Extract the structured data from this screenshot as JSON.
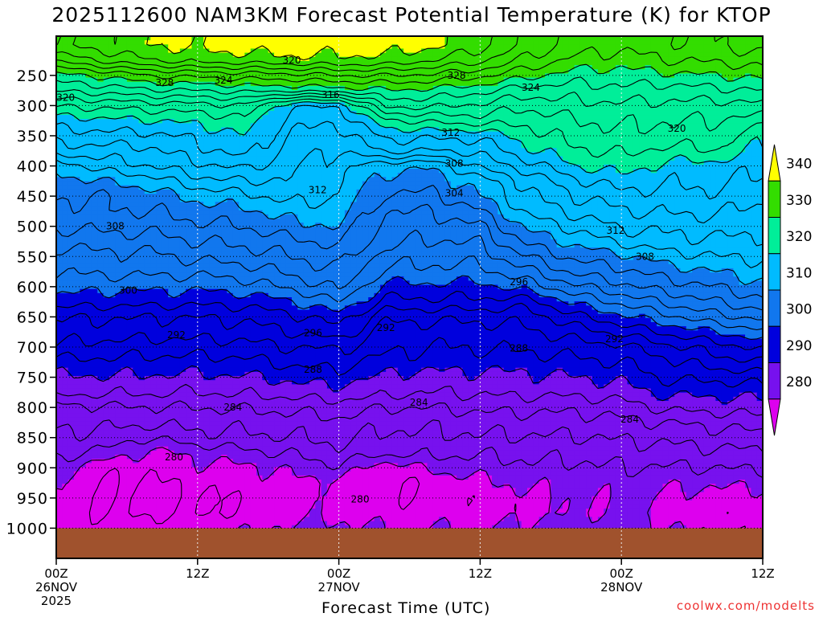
{
  "chart_data": {
    "type": "heatmap",
    "title": "2025112600 NAM3KM Forecast Potential Temperature (K) for KTOP",
    "xlabel": "Forecast Time (UTC)",
    "ylabel": "",
    "credit": "coolwx.com/modelts",
    "x_ticks": [
      {
        "hour": 0,
        "label": "00Z",
        "sub": "26NOV",
        "sub2": "2025"
      },
      {
        "hour": 12,
        "label": "12Z",
        "sub": "",
        "sub2": ""
      },
      {
        "hour": 24,
        "label": "00Z",
        "sub": "27NOV",
        "sub2": ""
      },
      {
        "hour": 36,
        "label": "12Z",
        "sub": "",
        "sub2": ""
      },
      {
        "hour": 48,
        "label": "00Z",
        "sub": "28NOV",
        "sub2": ""
      },
      {
        "hour": 60,
        "label": "12Z",
        "sub": "",
        "sub2": ""
      }
    ],
    "xlim": [
      0,
      60
    ],
    "y_ticks": [
      250,
      300,
      350,
      400,
      450,
      500,
      550,
      600,
      650,
      700,
      750,
      800,
      850,
      900,
      950,
      1000
    ],
    "ylim": [
      1050,
      185
    ],
    "surface_pressure": 1000,
    "colorbar": {
      "bins": [
        {
          "lo": 340,
          "hi": null,
          "color": "#ffff00"
        },
        {
          "lo": 330,
          "hi": 340,
          "color": "#33dd00"
        },
        {
          "lo": 320,
          "hi": 330,
          "color": "#00ee99"
        },
        {
          "lo": 310,
          "hi": 320,
          "color": "#00bbff"
        },
        {
          "lo": 300,
          "hi": 310,
          "color": "#1177ee"
        },
        {
          "lo": 290,
          "hi": 300,
          "color": "#0000dd"
        },
        {
          "lo": 280,
          "hi": 290,
          "color": "#7711ee"
        },
        {
          "lo": null,
          "hi": 280,
          "color": "#dd00ee"
        }
      ],
      "tick_labels": [
        "340",
        "330",
        "320",
        "310",
        "300",
        "290",
        "280"
      ]
    },
    "ground_color": "#a0522d",
    "contour_interval": 2,
    "contour_labels": [
      {
        "value": 320,
        "hour": 0.8,
        "p": 287
      },
      {
        "value": 328,
        "hour": 9.2,
        "p": 262
      },
      {
        "value": 324,
        "hour": 14.2,
        "p": 258
      },
      {
        "value": 320,
        "hour": 20.0,
        "p": 225
      },
      {
        "value": 316,
        "hour": 23.3,
        "p": 282
      },
      {
        "value": 328,
        "hour": 34.0,
        "p": 250
      },
      {
        "value": 324,
        "hour": 40.3,
        "p": 270
      },
      {
        "value": 312,
        "hour": 33.5,
        "p": 345
      },
      {
        "value": 320,
        "hour": 52.7,
        "p": 338
      },
      {
        "value": 308,
        "hour": 33.8,
        "p": 396
      },
      {
        "value": 312,
        "hour": 22.2,
        "p": 440
      },
      {
        "value": 304,
        "hour": 33.8,
        "p": 445
      },
      {
        "value": 308,
        "hour": 5.0,
        "p": 500
      },
      {
        "value": 312,
        "hour": 47.5,
        "p": 507
      },
      {
        "value": 308,
        "hour": 50.0,
        "p": 550
      },
      {
        "value": 296,
        "hour": 39.3,
        "p": 592
      },
      {
        "value": 300,
        "hour": 6.1,
        "p": 606
      },
      {
        "value": 296,
        "hour": 21.8,
        "p": 677
      },
      {
        "value": 292,
        "hour": 10.2,
        "p": 680
      },
      {
        "value": 292,
        "hour": 28.0,
        "p": 668
      },
      {
        "value": 292,
        "hour": 47.4,
        "p": 687
      },
      {
        "value": 288,
        "hour": 39.3,
        "p": 702
      },
      {
        "value": 288,
        "hour": 21.8,
        "p": 737
      },
      {
        "value": 284,
        "hour": 30.8,
        "p": 792
      },
      {
        "value": 284,
        "hour": 15.0,
        "p": 800
      },
      {
        "value": 284,
        "hour": 48.7,
        "p": 820
      },
      {
        "value": 280,
        "hour": 10.0,
        "p": 882
      },
      {
        "value": 280,
        "hour": 25.8,
        "p": 952
      }
    ],
    "pressure_levels": [
      200,
      225,
      250,
      275,
      300,
      325,
      350,
      375,
      400,
      425,
      450,
      475,
      500,
      525,
      550,
      575,
      600,
      625,
      650,
      675,
      700,
      725,
      750,
      775,
      800,
      825,
      850,
      875,
      900,
      925,
      950,
      975,
      1000
    ],
    "theta_profiles": [
      {
        "hour": 0,
        "theta": [
          338,
          334.4,
          329.3,
          326.2,
          322.2,
          319,
          317,
          315.3,
          310.5,
          309.2,
          308.2,
          307.1,
          306.4,
          304.5,
          303,
          302,
          300.9,
          299,
          296.1,
          295,
          293.7,
          291.4,
          289.7,
          288.7,
          285,
          284.4,
          283.4,
          282.6,
          281.2,
          279.7,
          279,
          279,
          279
        ]
      },
      {
        "hour": 4,
        "theta": [
          339,
          336.4,
          330.3,
          326.8,
          322.5,
          319.5,
          317.3,
          315,
          313,
          310,
          308,
          307.8,
          306.5,
          305,
          303.5,
          302.5,
          300.5,
          298.7,
          296.2,
          295,
          293.2,
          291.5,
          289.8,
          288.3,
          285.8,
          284.5,
          283.5,
          281.5,
          278.5,
          278,
          277.8,
          278,
          279
        ]
      },
      {
        "hour": 8,
        "theta": [
          340,
          338,
          332,
          327.7,
          323,
          319.8,
          317.5,
          315.5,
          314,
          311,
          309,
          308,
          306.7,
          305.1,
          303.5,
          302.5,
          300.5,
          298.7,
          296,
          294.8,
          293,
          291.3,
          289.7,
          288.3,
          285.8,
          284.5,
          282,
          279.5,
          278.5,
          277.8,
          277.5,
          277.8,
          279
        ]
      },
      {
        "hour": 12,
        "theta": [
          340.5,
          338.8,
          332.5,
          328,
          323.3,
          320.5,
          318.5,
          317.3,
          315.5,
          313.3,
          310.5,
          309,
          307.5,
          306,
          304.5,
          302.5,
          300.5,
          298.5,
          296,
          294.8,
          293,
          291.2,
          289.6,
          288,
          286,
          284.5,
          283.5,
          280.5,
          279.5,
          278.5,
          277.8,
          278,
          279.5
        ]
      },
      {
        "hour": 16,
        "theta": [
          341,
          339,
          333,
          328.5,
          323.8,
          321.5,
          320,
          319,
          316.5,
          314,
          311.5,
          309.5,
          308,
          306.5,
          305,
          303,
          301,
          298.7,
          296.5,
          295,
          293.2,
          291.5,
          289.8,
          288.3,
          286.2,
          284.7,
          283.5,
          281.5,
          279.5,
          278.8,
          278.2,
          278.3,
          279.5
        ]
      },
      {
        "hour": 20,
        "theta": [
          341,
          339.5,
          333.3,
          328.5,
          318,
          316.8,
          315.8,
          315,
          314.3,
          313.8,
          312.8,
          311,
          309.5,
          307.5,
          306,
          304.5,
          302.5,
          299.8,
          297.5,
          296,
          294,
          292.5,
          290.5,
          288.8,
          286.5,
          285,
          284,
          282.2,
          280.5,
          279.5,
          279.2,
          279.5,
          280.5
        ]
      },
      {
        "hour": 24,
        "theta": [
          341,
          339.5,
          334,
          329,
          318.3,
          316.2,
          315,
          313.8,
          312.8,
          312.5,
          312,
          311.3,
          310,
          308.5,
          307,
          306,
          304.5,
          302,
          299,
          297.3,
          294.2,
          292.8,
          291,
          289.2,
          287,
          285.5,
          284.5,
          283.4,
          281.7,
          279.5,
          279.2,
          279.5,
          280.5
        ]
      },
      {
        "hour": 28,
        "theta": [
          341,
          339.5,
          334,
          329.8,
          326.5,
          321.5,
          318.5,
          316.5,
          310.5,
          309.2,
          307.8,
          306,
          305.2,
          304.5,
          303,
          301.5,
          299.5,
          297.5,
          294.5,
          293,
          292.5,
          291.2,
          289.5,
          288.5,
          286,
          284.5,
          283.5,
          282.5,
          278.5,
          278,
          278.3,
          278.8,
          280
        ]
      },
      {
        "hour": 32,
        "theta": [
          340.5,
          338,
          333.5,
          329.5,
          326.5,
          322.5,
          318.5,
          316,
          310.3,
          309,
          307.5,
          306,
          305,
          303.8,
          302.6,
          301.5,
          299.5,
          297.5,
          294.5,
          293,
          292,
          291,
          289.2,
          288,
          286,
          284.5,
          283.6,
          282.5,
          280.5,
          278.5,
          278.3,
          278.8,
          280
        ]
      },
      {
        "hour": 36,
        "theta": [
          338.5,
          336.5,
          332.5,
          328.5,
          325.5,
          323,
          318.5,
          316.5,
          314.5,
          311,
          310,
          307.8,
          305.7,
          304.2,
          302.8,
          301.3,
          299.3,
          297.5,
          294.5,
          293,
          292.2,
          290.8,
          289.5,
          288.3,
          286.5,
          284.8,
          283.8,
          282.2,
          281,
          279.5,
          278.8,
          279,
          280
        ]
      },
      {
        "hour": 40,
        "theta": [
          335.5,
          333.5,
          330.5,
          327,
          324.5,
          322.5,
          321,
          319.5,
          317,
          314.5,
          313.5,
          312.5,
          310.5,
          308.5,
          306,
          303.5,
          301,
          297,
          294.8,
          293.5,
          292.4,
          291,
          289.5,
          288.5,
          286.5,
          285,
          283.8,
          282.6,
          281.5,
          280.5,
          279.5,
          279.5,
          280.5
        ]
      },
      {
        "hour": 44,
        "theta": [
          333,
          331.5,
          329,
          327,
          325.5,
          323.8,
          323,
          321.5,
          320,
          317.5,
          316,
          314.5,
          312.5,
          310.5,
          308.5,
          306.5,
          303.5,
          300.5,
          297.5,
          295,
          293,
          291.5,
          290,
          288.5,
          286.5,
          285,
          283.8,
          282.5,
          281.5,
          280.5,
          280,
          280,
          281
        ]
      },
      {
        "hour": 48,
        "theta": [
          332.5,
          331,
          329,
          327.5,
          325.5,
          324.5,
          323.5,
          322.5,
          321,
          319,
          317.2,
          315.8,
          314.3,
          312.5,
          309.5,
          307.5,
          305.5,
          302.5,
          299.5,
          296.5,
          293.5,
          292,
          290.5,
          289,
          287,
          285.5,
          284.2,
          283,
          282,
          281,
          280.5,
          280.5,
          281.5
        ]
      },
      {
        "hour": 52,
        "theta": [
          333.5,
          332,
          329.5,
          327,
          325.5,
          324,
          323.3,
          321.3,
          319.3,
          318.3,
          317.3,
          316.3,
          314.5,
          313.5,
          311.2,
          309,
          307,
          304.5,
          301.5,
          298.5,
          295.5,
          293.5,
          292.5,
          290.5,
          288.5,
          286,
          284.5,
          283.2,
          281.8,
          280.5,
          279.5,
          279,
          280
        ]
      },
      {
        "hour": 56,
        "theta": [
          334,
          332.3,
          330,
          327.5,
          325.2,
          324,
          323,
          322,
          319,
          318.5,
          317.5,
          316.3,
          315,
          313.6,
          312,
          310,
          308,
          306,
          303.5,
          300,
          297,
          295,
          292.5,
          290.5,
          288.7,
          286.5,
          285,
          283.5,
          282,
          280.3,
          279.2,
          278.8,
          279.5
        ]
      },
      {
        "hour": 60,
        "theta": [
          335,
          333,
          330.5,
          328,
          325.5,
          323,
          320.5,
          319.5,
          318.7,
          317.5,
          316.5,
          315.5,
          314.5,
          313.5,
          312.3,
          311,
          309.5,
          307.5,
          304.5,
          301.5,
          298.5,
          296,
          293,
          290.8,
          289,
          287,
          285.3,
          283.7,
          282.3,
          280.5,
          279.2,
          278.8,
          279.5
        ]
      }
    ]
  }
}
